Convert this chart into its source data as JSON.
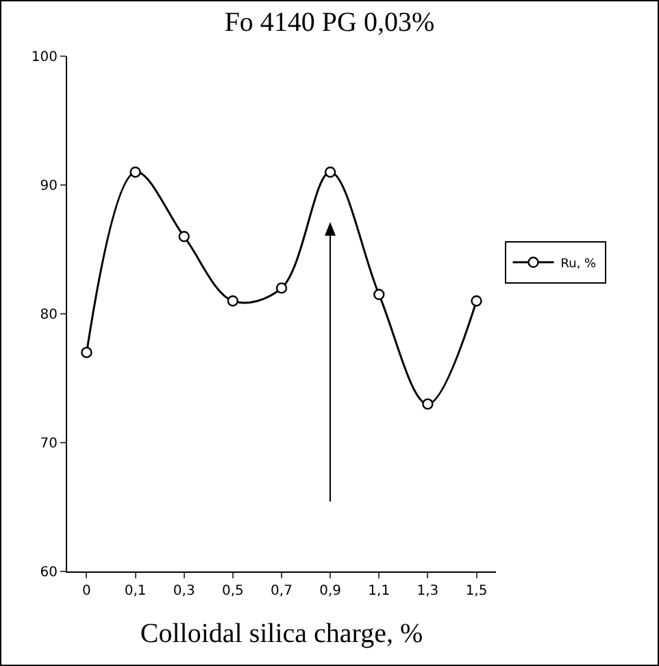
{
  "chart_data": {
    "type": "line",
    "title": "Fo 4140 PG 0,03%",
    "xlabel": "Colloidal silica charge, %",
    "categories": [
      "0",
      "0,1",
      "0,3",
      "0,5",
      "0,7",
      "0,9",
      "1,1",
      "1,3",
      "1,5"
    ],
    "series": [
      {
        "name": "Ru, %",
        "color": "#000000",
        "values": [
          77,
          91,
          86,
          81,
          82,
          91,
          81.5,
          73,
          81
        ]
      }
    ],
    "ylim": [
      60,
      100
    ],
    "yticks": [
      60,
      70,
      80,
      90,
      100
    ],
    "grid": false,
    "legend": "right",
    "marker": "circle",
    "line_style": "solid"
  }
}
